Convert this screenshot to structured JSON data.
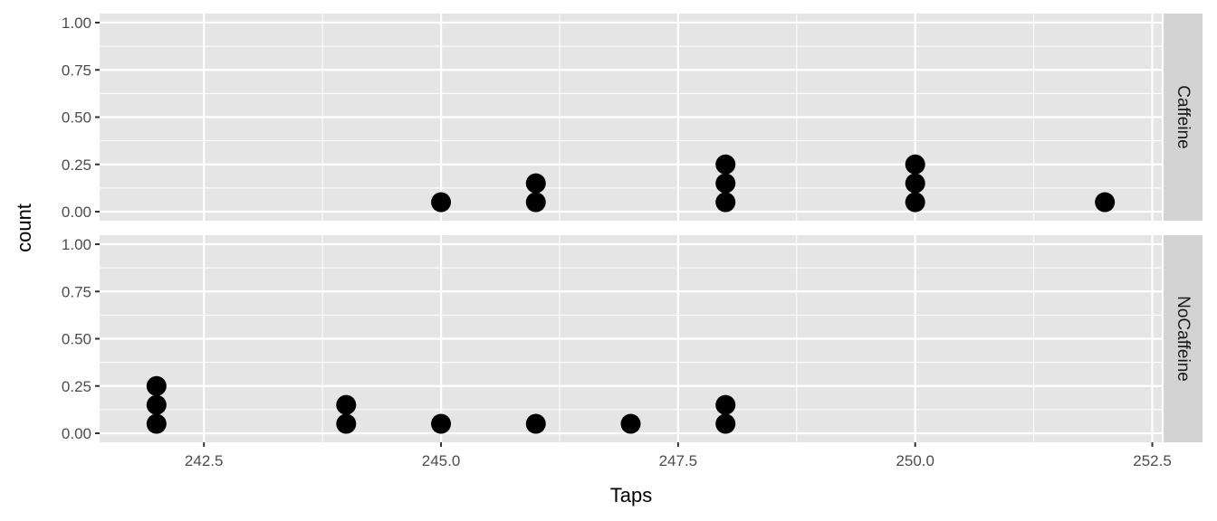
{
  "chart_data": {
    "type": "dotplot",
    "xlabel": "Taps",
    "ylabel": "count",
    "xlim": [
      241.4,
      252.6
    ],
    "ylim": [
      0,
      1
    ],
    "x_ticks": [
      "242.5",
      "245.0",
      "247.5",
      "250.0",
      "252.5"
    ],
    "y_ticks": [
      "0.00",
      "0.25",
      "0.50",
      "0.75",
      "1.00"
    ],
    "grid": true,
    "panels": [
      {
        "name": "Caffeine",
        "points": [
          {
            "x": 245,
            "y": 0.05
          },
          {
            "x": 246,
            "y": 0.05
          },
          {
            "x": 246,
            "y": 0.15
          },
          {
            "x": 248,
            "y": 0.05
          },
          {
            "x": 248,
            "y": 0.15
          },
          {
            "x": 248,
            "y": 0.25
          },
          {
            "x": 250,
            "y": 0.05
          },
          {
            "x": 250,
            "y": 0.15
          },
          {
            "x": 250,
            "y": 0.25
          },
          {
            "x": 252,
            "y": 0.05
          }
        ]
      },
      {
        "name": "NoCaffeine",
        "points": [
          {
            "x": 242,
            "y": 0.05
          },
          {
            "x": 242,
            "y": 0.15
          },
          {
            "x": 242,
            "y": 0.25
          },
          {
            "x": 244,
            "y": 0.05
          },
          {
            "x": 244,
            "y": 0.15
          },
          {
            "x": 245,
            "y": 0.05
          },
          {
            "x": 246,
            "y": 0.05
          },
          {
            "x": 247,
            "y": 0.05
          },
          {
            "x": 248,
            "y": 0.05
          },
          {
            "x": 248,
            "y": 0.15
          }
        ]
      }
    ],
    "colors": {
      "panel_bg": "#e5e5e5",
      "grid": "#ffffff",
      "strip_bg": "#d3d3d3",
      "point": "#000000",
      "tick_text": "#4d4d4d",
      "tick_mark": "#333333"
    }
  }
}
